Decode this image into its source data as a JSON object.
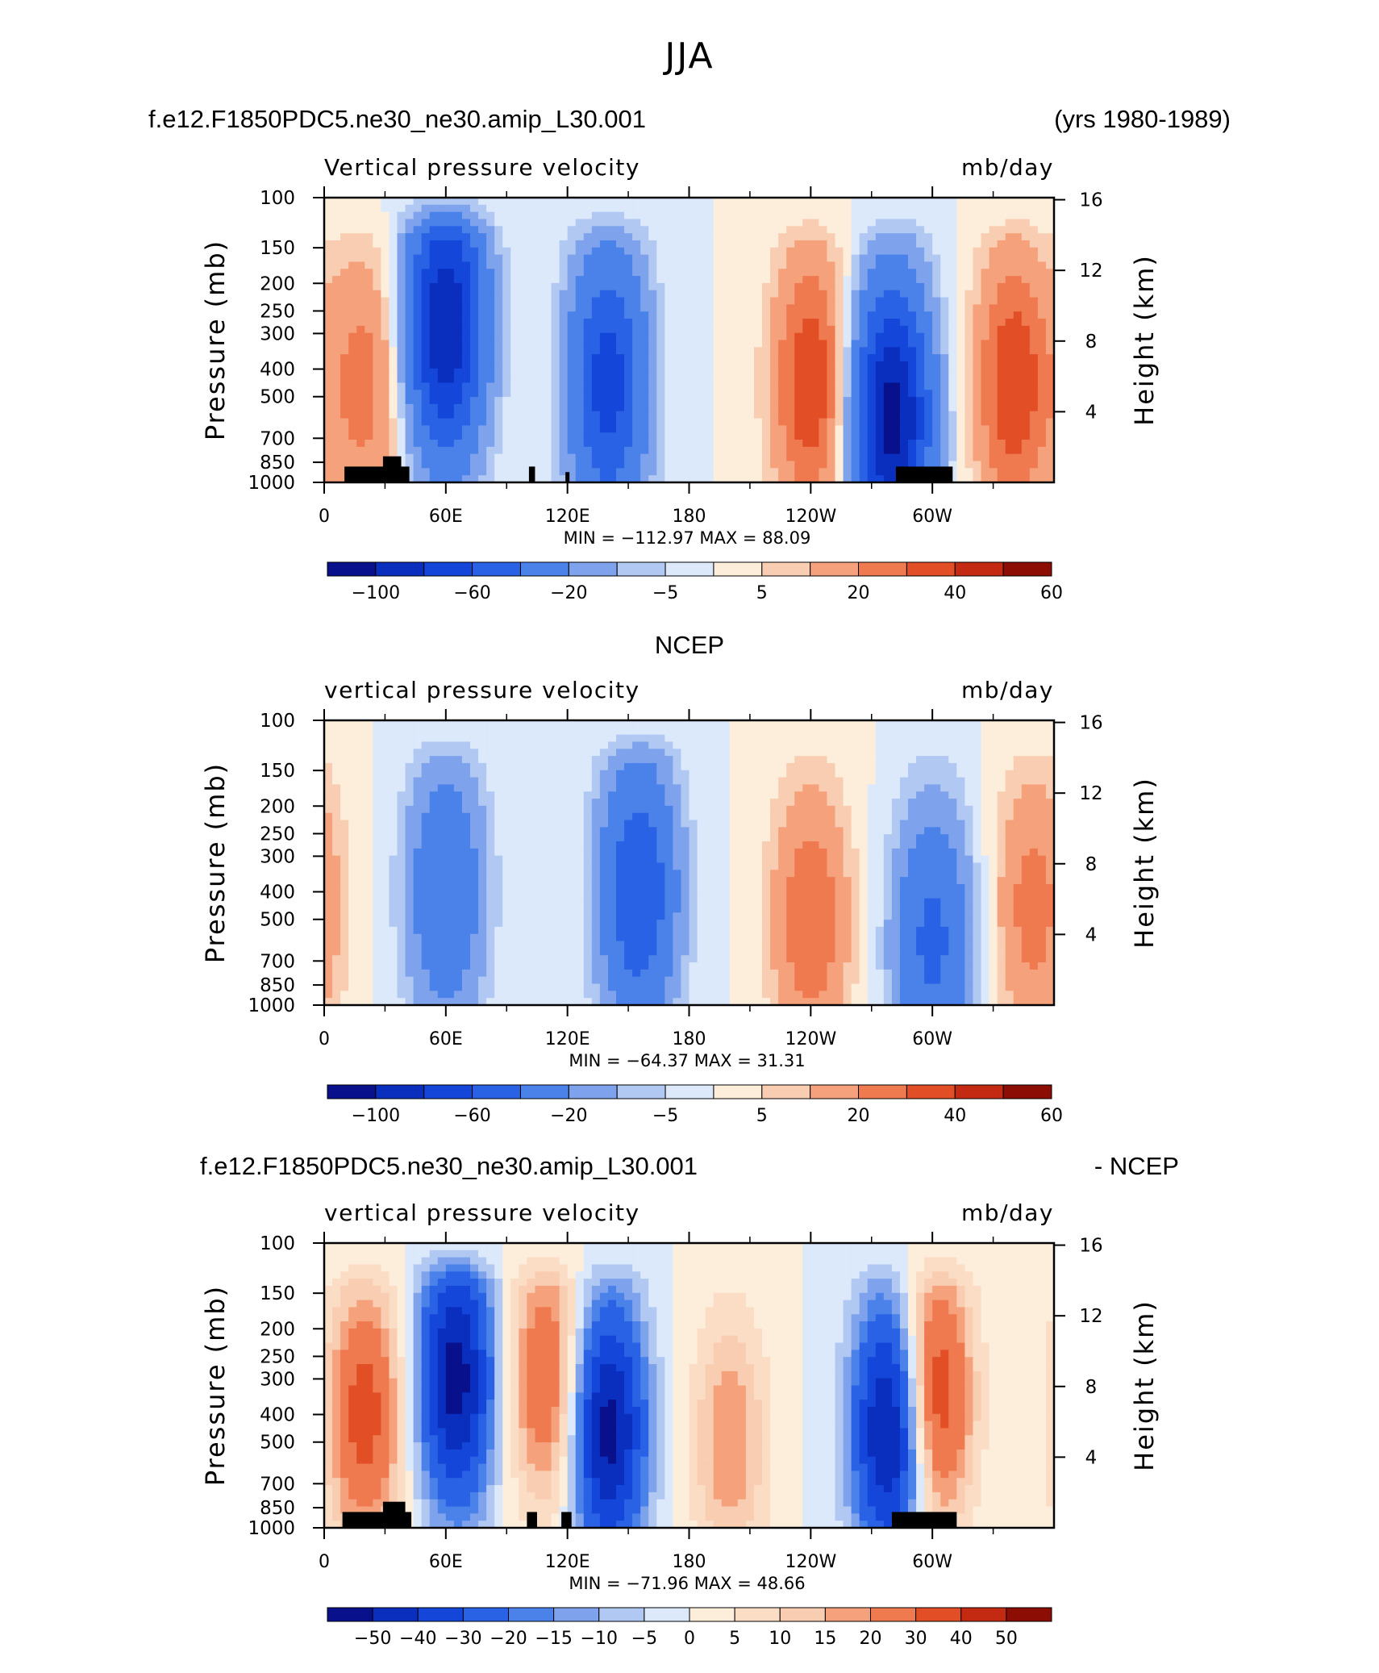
{
  "figure_title": "JJA",
  "colors": {
    "fill_0_14": [
      "#08108c",
      "#0a2fbf",
      "#1447d9",
      "#2a62e6",
      "#4a82ea",
      "#7ea3ec",
      "#b0c8f2",
      "#dbe9fb",
      "#fdeedc",
      "#f9cdb1",
      "#f5a27c",
      "#f07a50",
      "#e24f26",
      "#c42a12",
      "#8c0d04"
    ],
    "fill_0_16": [
      "#08108c",
      "#0a2fbf",
      "#1447d9",
      "#2a62e6",
      "#4a82ea",
      "#7ea3ec",
      "#b0c8f2",
      "#dbe9fb",
      "#fdeedc",
      "#fbdcc4",
      "#f9cdb1",
      "#f5a27c",
      "#f07a50",
      "#e24f26",
      "#c42a12",
      "#8c0d04"
    ],
    "land_mask": "#000000"
  },
  "panels": [
    {
      "header_left": "f.e12.F1850PDC5.ne30_ne30.amip_L30.001",
      "header_right": "(yrs 1980-1989)",
      "left_string": "Vertical pressure velocity",
      "right_string": "mb/day",
      "y_axis_label": "Pressure (mb)",
      "y2_axis_label": "Height (km)",
      "stats": "MIN = −112.97   MAX =   88.09",
      "colorbar_labels": [
        "−100",
        "−60",
        "−20",
        "−5",
        "5",
        "20",
        "40",
        "60"
      ]
    },
    {
      "header_center": "NCEP",
      "left_string": "vertical pressure velocity",
      "right_string": "mb/day",
      "y_axis_label": "Pressure (mb)",
      "y2_axis_label": "Height (km)",
      "stats": "MIN = −64.37   MAX =   31.31",
      "colorbar_labels": [
        "−100",
        "−60",
        "−20",
        "−5",
        "5",
        "20",
        "40",
        "60"
      ]
    },
    {
      "header_left": "f.e12.F1850PDC5.ne30_ne30.amip_L30.001",
      "header_right": "- NCEP",
      "left_string": "vertical pressure velocity",
      "right_string": "mb/day",
      "y_axis_label": "Pressure (mb)",
      "y2_axis_label": "Height (km)",
      "stats": "MIN = −71.96   MAX =   48.66",
      "colorbar_labels": [
        "−50",
        "−40",
        "−30",
        "−20",
        "−15",
        "−10",
        "−5",
        "0",
        "5",
        "10",
        "15",
        "20",
        "30",
        "40",
        "50"
      ]
    }
  ],
  "chart_data": [
    {
      "type": "heatmap",
      "title": "Vertical pressure velocity",
      "units": "mb/day",
      "x_tick_labels": [
        "0",
        "60E",
        "120E",
        "180",
        "120W",
        "60W"
      ],
      "x_tick_values_deg": [
        0,
        60,
        120,
        180,
        240,
        300
      ],
      "x_range_deg": [
        0,
        360
      ],
      "y_tick_labels": [
        "100",
        "150",
        "200",
        "250",
        "300",
        "400",
        "500",
        "700",
        "850",
        "1000"
      ],
      "y_tick_values_mb": [
        100,
        150,
        200,
        250,
        300,
        400,
        500,
        700,
        850,
        1000
      ],
      "y2_tick_labels": [
        "16",
        "12",
        "8",
        "4"
      ],
      "y2_tick_values_km": [
        16,
        12,
        8,
        4
      ],
      "y_scale": "log",
      "y_range_mb": [
        1000,
        100
      ],
      "contour_levels": [
        -100,
        -80,
        -60,
        -40,
        -20,
        -10,
        -5,
        0,
        5,
        10,
        20,
        30,
        40,
        50,
        60
      ],
      "min": -112.97,
      "max": 88.09,
      "features": [
        {
          "lon": 60,
          "p": 280,
          "value": -100
        },
        {
          "lon": 140,
          "p": 450,
          "value": -70
        },
        {
          "lon": 20,
          "p": 450,
          "value": 25
        },
        {
          "lon": 240,
          "p": 450,
          "value": 40
        },
        {
          "lon": 280,
          "p": 600,
          "value": -110
        },
        {
          "lon": 340,
          "p": 450,
          "value": 40
        }
      ]
    },
    {
      "type": "heatmap",
      "title": "vertical pressure velocity",
      "units": "mb/day",
      "x_tick_labels": [
        "0",
        "60E",
        "120E",
        "180",
        "120W",
        "60W"
      ],
      "x_tick_values_deg": [
        0,
        60,
        120,
        180,
        240,
        300
      ],
      "x_range_deg": [
        0,
        360
      ],
      "y_tick_labels": [
        "100",
        "150",
        "200",
        "250",
        "300",
        "400",
        "500",
        "700",
        "850",
        "1000"
      ],
      "y_tick_values_mb": [
        100,
        150,
        200,
        250,
        300,
        400,
        500,
        700,
        850,
        1000
      ],
      "y2_tick_labels": [
        "16",
        "12",
        "8",
        "4"
      ],
      "y2_tick_values_km": [
        16,
        12,
        8,
        4
      ],
      "y_scale": "log",
      "y_range_mb": [
        1000,
        100
      ],
      "contour_levels": [
        -100,
        -80,
        -60,
        -40,
        -20,
        -10,
        -5,
        0,
        5,
        10,
        20,
        30,
        40,
        50,
        60
      ],
      "min": -64.37,
      "max": 31.31,
      "features": [
        {
          "lon": 60,
          "p": 400,
          "value": -40
        },
        {
          "lon": 155,
          "p": 400,
          "value": -60
        },
        {
          "lon": 240,
          "p": 500,
          "value": 30
        },
        {
          "lon": 300,
          "p": 600,
          "value": -45
        },
        {
          "lon": 350,
          "p": 450,
          "value": 25
        }
      ]
    },
    {
      "type": "heatmap",
      "title": "vertical pressure velocity",
      "units": "mb/day",
      "x_tick_labels": [
        "0",
        "60E",
        "120E",
        "180",
        "120W",
        "60W"
      ],
      "x_tick_values_deg": [
        0,
        60,
        120,
        180,
        240,
        300
      ],
      "x_range_deg": [
        0,
        360
      ],
      "y_tick_labels": [
        "100",
        "150",
        "200",
        "250",
        "300",
        "400",
        "500",
        "700",
        "850",
        "1000"
      ],
      "y_tick_values_mb": [
        100,
        150,
        200,
        250,
        300,
        400,
        500,
        700,
        850,
        1000
      ],
      "y2_tick_labels": [
        "16",
        "12",
        "8",
        "4"
      ],
      "y2_tick_values_km": [
        16,
        12,
        8,
        4
      ],
      "y_scale": "log",
      "y_range_mb": [
        1000,
        100
      ],
      "contour_levels": [
        -50,
        -40,
        -30,
        -20,
        -15,
        -10,
        -5,
        0,
        5,
        10,
        15,
        20,
        30,
        40,
        50
      ],
      "min": -71.96,
      "max": 48.66,
      "features": [
        {
          "lon": 20,
          "p": 400,
          "value": 35
        },
        {
          "lon": 65,
          "p": 300,
          "value": -55
        },
        {
          "lon": 110,
          "p": 300,
          "value": 30
        },
        {
          "lon": 140,
          "p": 450,
          "value": -55
        },
        {
          "lon": 200,
          "p": 500,
          "value": 20
        },
        {
          "lon": 280,
          "p": 450,
          "value": -60
        },
        {
          "lon": 300,
          "p": 350,
          "value": 45
        }
      ]
    }
  ]
}
